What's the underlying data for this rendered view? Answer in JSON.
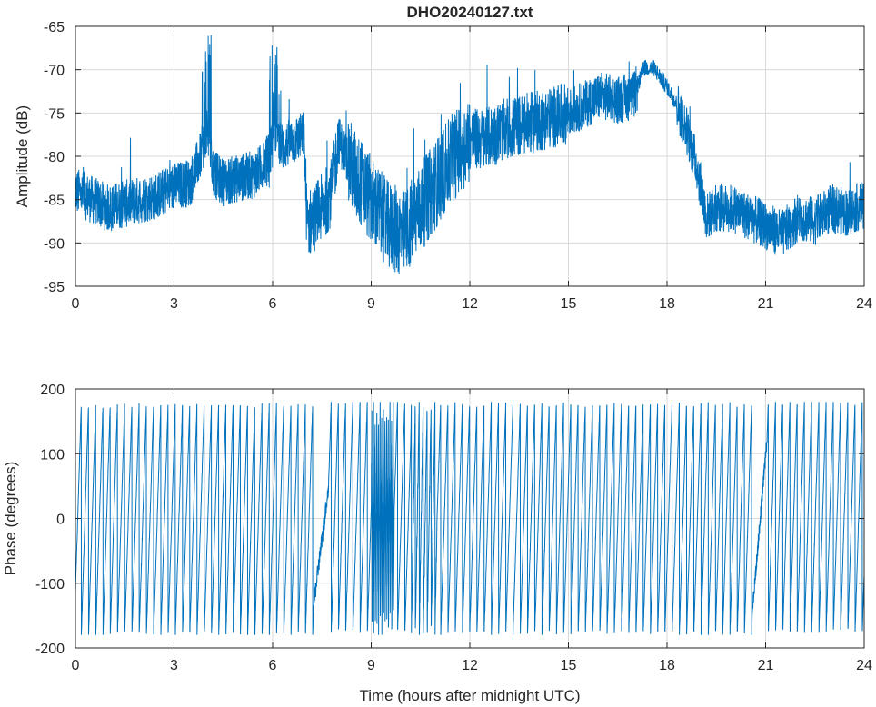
{
  "figure": {
    "title": "DHO20240127.txt",
    "line_color": "#0072BD",
    "grid_color": "#DADADA",
    "axis_color": "#262626"
  },
  "chart_data": [
    {
      "type": "line",
      "name": "amplitude",
      "title": "DHO20240127.txt",
      "xlabel": "",
      "ylabel": "Amplitude (dB)",
      "xlim": [
        0,
        24
      ],
      "ylim": [
        -95,
        -65
      ],
      "xticks": [
        0,
        3,
        6,
        9,
        12,
        15,
        18,
        21,
        24
      ],
      "yticks": [
        -95,
        -90,
        -85,
        -80,
        -75,
        -70,
        -65
      ],
      "grid": true,
      "series": [
        {
          "x": [
            0,
            0.5,
            1,
            1.5,
            2,
            2.5,
            3,
            3.5,
            3.8,
            4.0,
            4.2,
            4.5,
            5,
            5.5,
            5.9,
            6.1,
            6.3,
            6.5,
            6.95,
            7.05,
            7.5,
            7.8,
            8.0,
            8.5,
            9,
            9.5,
            10,
            10.5,
            11,
            11.5,
            12,
            12.5,
            13,
            13.5,
            14,
            14.5,
            15,
            15.5,
            16,
            16.5,
            17,
            17.3,
            17.6,
            18,
            18.3,
            18.6,
            18.9,
            19.2,
            19.5,
            20,
            20.5,
            21,
            21.5,
            22,
            22.5,
            23,
            23.5,
            24
          ],
          "y": [
            -84,
            -85,
            -86,
            -85.5,
            -85,
            -84.5,
            -83.5,
            -83,
            -80,
            -77,
            -82,
            -83,
            -82.5,
            -82,
            -80,
            -77,
            -79,
            -78.5,
            -77.5,
            -88,
            -86,
            -84,
            -78,
            -82,
            -85,
            -88,
            -89,
            -86,
            -83,
            -80,
            -78,
            -78,
            -77,
            -76.5,
            -76,
            -75.5,
            -75,
            -74,
            -73,
            -73.5,
            -73,
            -69.8,
            -69.8,
            -72,
            -74,
            -77,
            -81,
            -87,
            -86,
            -86,
            -87,
            -88,
            -89,
            -87,
            -87.5,
            -86,
            -86.5,
            -85.5
          ]
        }
      ]
    },
    {
      "type": "line",
      "name": "phase",
      "title": "",
      "xlabel": "Time (hours after midnight UTC)",
      "ylabel": "Phase (degrees)",
      "xlim": [
        0,
        24
      ],
      "ylim": [
        -200,
        200
      ],
      "xticks": [
        0,
        3,
        6,
        9,
        12,
        15,
        18,
        21,
        24
      ],
      "yticks": [
        -200,
        -100,
        0,
        100,
        200
      ],
      "grid": true,
      "series": [
        {
          "description": "phase wraps between -180 and 180 degrees approximately every 0.22 h",
          "wrap_period_hours": 0.22,
          "range": [
            -180,
            180
          ]
        }
      ]
    }
  ]
}
